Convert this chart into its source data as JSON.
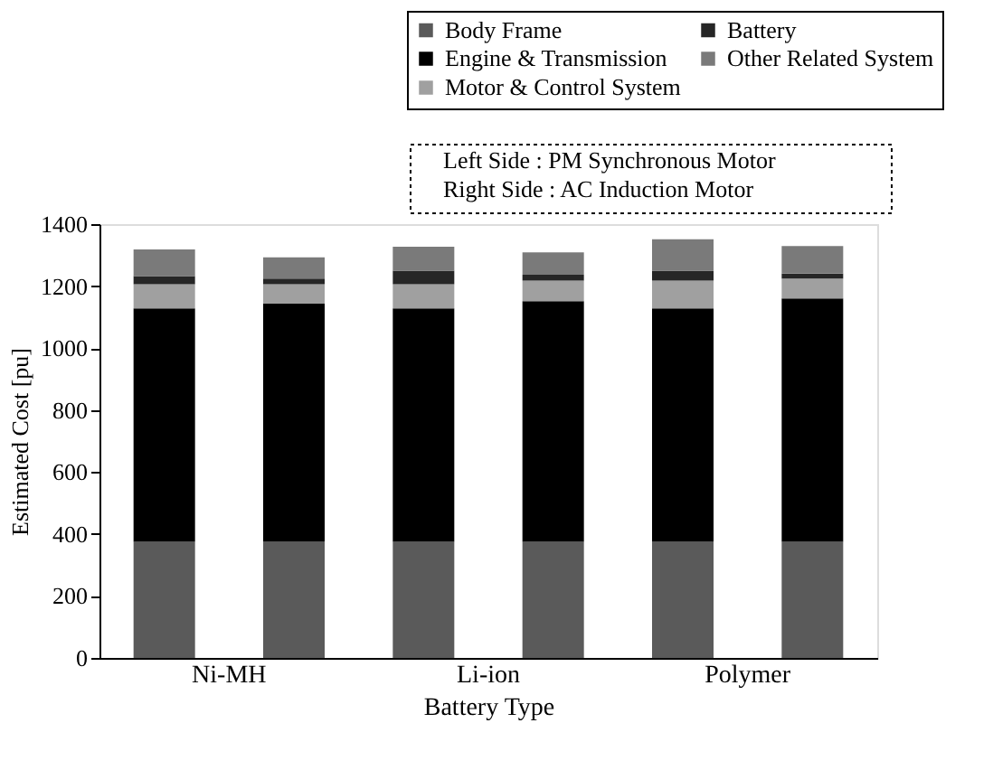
{
  "chart_data": {
    "type": "bar",
    "stacked": true,
    "xlabel": "Battery Type",
    "ylabel": "Estimated Cost [pu]",
    "categories": [
      "Ni-MH",
      null,
      "Li-ion",
      null,
      "Polymer",
      null
    ],
    "series": [
      {
        "name": "Body Frame",
        "color": "#5a5a5a",
        "values": [
          375,
          375,
          375,
          375,
          375,
          375
        ]
      },
      {
        "name": "Engine & Transmission",
        "color": "#000000",
        "values": [
          753,
          768,
          753,
          776,
          753,
          785
        ]
      },
      {
        "name": "Motor & Control System",
        "color": "#a0a0a0",
        "values": [
          78,
          63,
          78,
          67,
          90,
          64
        ]
      },
      {
        "name": "Battery",
        "color": "#262626",
        "values": [
          26,
          18,
          44,
          19,
          32,
          16
        ]
      },
      {
        "name": "Other Related System",
        "color": "#7a7a7a",
        "values": [
          86,
          69,
          77,
          72,
          101,
          89
        ]
      }
    ],
    "ylim": [
      0,
      1400
    ],
    "yticks": [
      0,
      200,
      400,
      600,
      800,
      1000,
      1200,
      1400
    ],
    "grid": false,
    "legend": "top right",
    "annotations": [
      "Left Side : PM Synchronous Motor",
      "Right Side : AC Induction Motor"
    ]
  }
}
